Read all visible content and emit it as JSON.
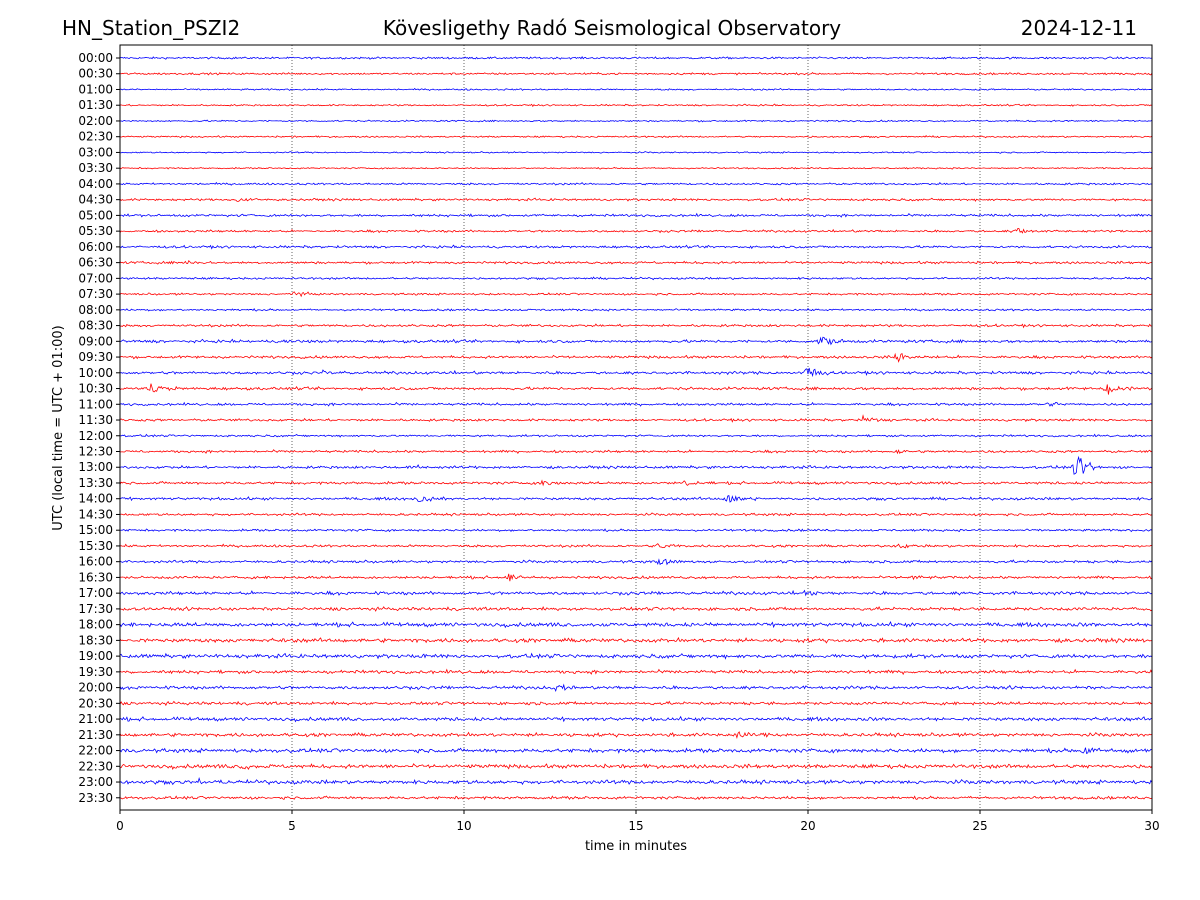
{
  "header": {
    "station": "HN_Station_PSZI2",
    "observatory": "Kövesligethy Radó Seismological Observatory",
    "date": "2024-12-11"
  },
  "chart_data": {
    "type": "line",
    "title": "Kövesligethy Radó Seismological Observatory",
    "xlabel": "time in minutes",
    "ylabel": "UTC (local time = UTC + 01:00)",
    "xlim": [
      0,
      30
    ],
    "x_ticks": [
      "0",
      "5",
      "10",
      "15",
      "20",
      "25",
      "30"
    ],
    "grid": "vertical dotted lines at 5-minute intervals",
    "trace_colors": [
      "#0000ff",
      "#ff0000"
    ],
    "rows": [
      "00:00",
      "00:30",
      "01:00",
      "01:30",
      "02:00",
      "02:30",
      "03:00",
      "03:30",
      "04:00",
      "04:30",
      "05:00",
      "05:30",
      "06:00",
      "06:30",
      "07:00",
      "07:30",
      "08:00",
      "08:30",
      "09:00",
      "09:30",
      "10:00",
      "10:30",
      "11:00",
      "11:30",
      "12:00",
      "12:30",
      "13:00",
      "13:30",
      "14:00",
      "14:30",
      "15:00",
      "15:30",
      "16:00",
      "16:30",
      "17:00",
      "17:30",
      "18:00",
      "18:30",
      "19:00",
      "19:30",
      "20:00",
      "20:30",
      "21:00",
      "21:30",
      "22:00",
      "22:30",
      "23:00",
      "23:30"
    ],
    "noise_levels": [
      1.0,
      1.0,
      0.8,
      0.8,
      0.8,
      0.8,
      0.7,
      0.7,
      1.0,
      1.1,
      1.2,
      1.1,
      1.2,
      1.2,
      1.0,
      1.0,
      1.0,
      1.2,
      1.4,
      1.3,
      1.4,
      1.4,
      1.2,
      1.2,
      1.0,
      1.2,
      1.3,
      1.3,
      1.3,
      1.2,
      1.1,
      1.2,
      1.3,
      1.3,
      1.6,
      1.6,
      1.9,
      1.9,
      1.9,
      1.6,
      1.6,
      1.5,
      1.7,
      1.7,
      1.9,
      1.9,
      1.9,
      1.4
    ],
    "events": [
      {
        "row": "04:30",
        "minute": 3.4,
        "amplitude": 3
      },
      {
        "row": "05:30",
        "minute": 26.1,
        "amplitude": 4
      },
      {
        "row": "06:30",
        "minute": 1.9,
        "amplitude": 2
      },
      {
        "row": "07:30",
        "minute": 5.0,
        "amplitude": 3
      },
      {
        "row": "09:00",
        "minute": 4.8,
        "amplitude": 2
      },
      {
        "row": "09:00",
        "minute": 20.4,
        "amplitude": 6
      },
      {
        "row": "09:30",
        "minute": 22.6,
        "amplitude": 6
      },
      {
        "row": "10:00",
        "minute": 5.8,
        "amplitude": 3
      },
      {
        "row": "10:00",
        "minute": 20.0,
        "amplitude": 6
      },
      {
        "row": "10:30",
        "minute": 0.9,
        "amplitude": 5
      },
      {
        "row": "10:30",
        "minute": 28.7,
        "amplitude": 6
      },
      {
        "row": "11:00",
        "minute": 27.0,
        "amplitude": 3
      },
      {
        "row": "11:30",
        "minute": 21.6,
        "amplitude": 4
      },
      {
        "row": "12:30",
        "minute": 22.5,
        "amplitude": 2
      },
      {
        "row": "13:00",
        "minute": 27.8,
        "amplitude": 12
      },
      {
        "row": "13:00",
        "minute": 8.5,
        "amplitude": 2
      },
      {
        "row": "13:30",
        "minute": 12.3,
        "amplitude": 4
      },
      {
        "row": "13:30",
        "minute": 16.4,
        "amplitude": 3
      },
      {
        "row": "14:00",
        "minute": 8.7,
        "amplitude": 3
      },
      {
        "row": "14:00",
        "minute": 17.7,
        "amplitude": 5
      },
      {
        "row": "15:30",
        "minute": 15.7,
        "amplitude": 3
      },
      {
        "row": "15:30",
        "minute": 22.6,
        "amplitude": 3
      },
      {
        "row": "16:00",
        "minute": 15.7,
        "amplitude": 5
      },
      {
        "row": "16:30",
        "minute": 11.3,
        "amplitude": 4
      },
      {
        "row": "16:30",
        "minute": 23.0,
        "amplitude": 2
      },
      {
        "row": "17:00",
        "minute": 19.9,
        "amplitude": 4
      },
      {
        "row": "20:00",
        "minute": 12.7,
        "amplitude": 4
      },
      {
        "row": "21:30",
        "minute": 18.0,
        "amplitude": 3
      },
      {
        "row": "22:00",
        "minute": 28.0,
        "amplitude": 4
      },
      {
        "row": "22:30",
        "minute": 3.6,
        "amplitude": 4
      },
      {
        "row": "23:00",
        "minute": 2.3,
        "amplitude": 3
      }
    ]
  }
}
